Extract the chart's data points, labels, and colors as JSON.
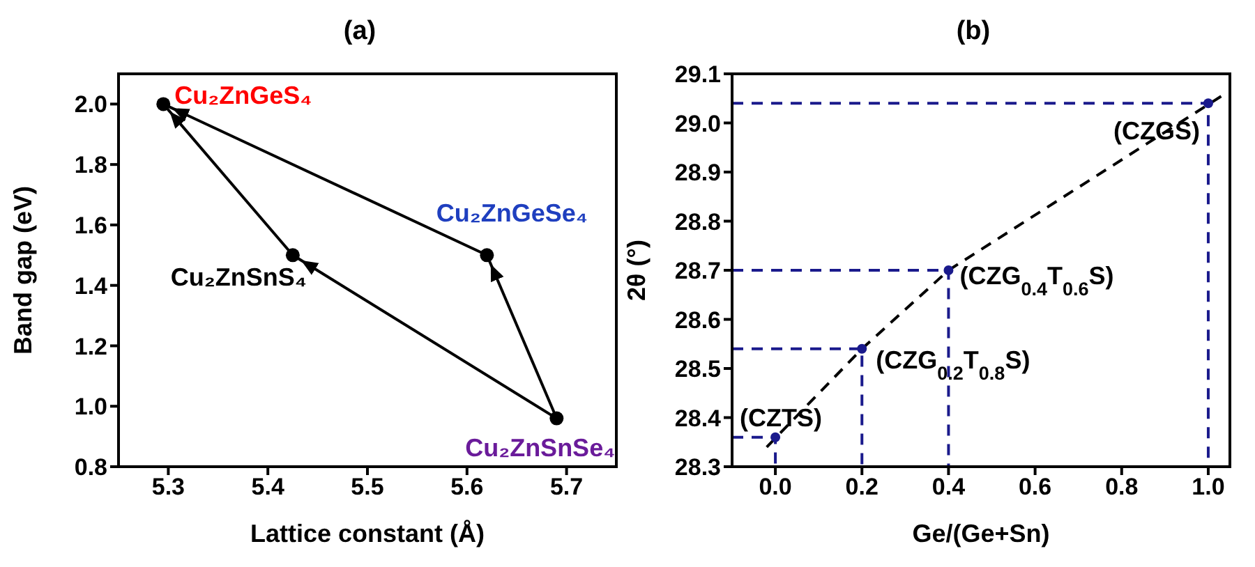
{
  "chart_data": [
    {
      "type": "scatter",
      "title": "(a)",
      "xlabel": "Lattice constant (Å)",
      "ylabel": "Band gap (eV)",
      "xlim": [
        5.25,
        5.75
      ],
      "xticks": [
        5.3,
        5.4,
        5.5,
        5.6,
        5.7
      ],
      "ylim": [
        0.8,
        2.1
      ],
      "yticks": [
        {
          "value": 0.8,
          "label": "0.8"
        },
        {
          "value": 1.0,
          "label": "1.0"
        },
        1.2,
        1.4,
        1.6,
        1.8,
        {
          "value": 2.0,
          "label": "2.0"
        }
      ],
      "series": [
        {
          "type": "line",
          "color": "#000000",
          "x": [
            5.69,
            5.425
          ],
          "values": [
            0.96,
            1.5
          ],
          "marker": "none",
          "line_style": "solid"
        },
        {
          "type": "line",
          "color": "#000000",
          "x": [
            5.425,
            5.295
          ],
          "values": [
            1.5,
            2.0
          ],
          "marker": "none",
          "line_style": "solid"
        },
        {
          "type": "line",
          "color": "#000000",
          "x": [
            5.69,
            5.62
          ],
          "values": [
            0.96,
            1.5
          ],
          "marker": "none",
          "line_style": "solid"
        },
        {
          "type": "line",
          "color": "#000000",
          "x": [
            5.62,
            5.295
          ],
          "values": [
            1.5,
            2.0
          ],
          "marker": "none",
          "line_style": "solid"
        },
        {
          "color": "#000000",
          "x": [
            5.295,
            5.62,
            5.425,
            5.69
          ],
          "values": [
            2.0,
            1.5,
            1.5,
            0.96
          ],
          "marker": "circle"
        }
      ],
      "annotations": [
        {
          "text": "Cu₂ZnGeS₄",
          "x": 5.295,
          "y": 2.0
        },
        {
          "text": "Cu₂ZnGeSe₄",
          "x": 5.62,
          "y": 1.5
        },
        {
          "text": "Cu₂ZnSnS₄",
          "x": 5.425,
          "y": 1.5
        },
        {
          "text": "Cu₂ZnSnSe₄",
          "x": 5.69,
          "y": 0.96
        }
      ]
    },
    {
      "type": "scatter",
      "title": "(b)",
      "xlabel": "Ge/(Ge+Sn)",
      "ylabel": "2θ (°)",
      "xlim": [
        -0.1,
        1.05
      ],
      "xticks": [
        {
          "value": 0,
          "label": "0.0"
        },
        0.2,
        0.4,
        0.6,
        0.8,
        {
          "value": 1,
          "label": "1.0"
        }
      ],
      "ylim": [
        28.3,
        29.1
      ],
      "yticks": [
        28.3,
        28.4,
        28.5,
        28.6,
        28.7,
        28.8,
        28.9,
        {
          "value": 29,
          "label": "29.0"
        },
        29.1
      ],
      "series": [
        {
          "type": "line",
          "color": "#1a1a8c",
          "x": [
            -0.1,
            0,
            0
          ],
          "values": [
            28.36,
            28.36,
            28.3
          ],
          "marker": "none",
          "line_style": "dashed"
        },
        {
          "type": "line",
          "color": "#1a1a8c",
          "x": [
            -0.1,
            0.2,
            0.2
          ],
          "values": [
            28.54,
            28.54,
            28.3
          ],
          "marker": "none",
          "line_style": "dashed"
        },
        {
          "type": "line",
          "color": "#1a1a8c",
          "x": [
            -0.1,
            0.4,
            0.4
          ],
          "values": [
            28.7,
            28.7,
            28.3
          ],
          "marker": "none",
          "line_style": "dashed"
        },
        {
          "type": "line",
          "color": "#1a1a8c",
          "x": [
            -0.1,
            1,
            1
          ],
          "values": [
            29.04,
            29.04,
            28.3
          ],
          "marker": "none",
          "line_style": "dashed"
        },
        {
          "type": "line",
          "color": "#000000",
          "x": [
            -0.02,
            0.2,
            0.4,
            1.04
          ],
          "values": [
            28.34,
            28.54,
            28.7,
            29.06
          ],
          "marker": "none",
          "line_style": "dashed"
        },
        {
          "color": "#1a1a8c",
          "x": [
            0,
            0.2,
            0.4,
            1
          ],
          "values": [
            28.36,
            28.54,
            28.7,
            29.04
          ],
          "marker": "circle"
        }
      ],
      "annotations": [
        {
          "text": "(CZTS)",
          "x": 0,
          "y": 28.36
        },
        {
          "text": "(CZG$_{0.2}$T$_{0.8}$S)",
          "x": 0.2,
          "y": 28.54
        },
        {
          "text": "(CZG$_{0.4}$T$_{0.6}$S)",
          "x": 0.4,
          "y": 28.7
        },
        {
          "text": "(CZGS)",
          "x": 1,
          "y": 29.04
        }
      ]
    }
  ]
}
